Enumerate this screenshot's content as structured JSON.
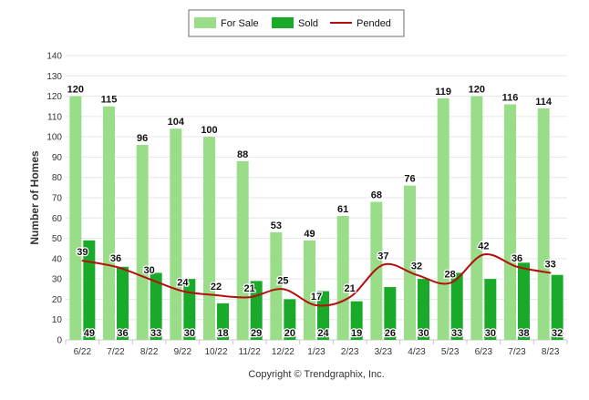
{
  "chart_data": {
    "type": "bar",
    "categories": [
      "6/22",
      "7/22",
      "8/22",
      "9/22",
      "10/22",
      "11/22",
      "12/22",
      "1/23",
      "2/23",
      "3/23",
      "4/23",
      "5/23",
      "6/23",
      "7/23",
      "8/23"
    ],
    "series": [
      {
        "name": "For Sale",
        "type": "bar",
        "color": "#99dd88",
        "values": [
          120,
          115,
          96,
          104,
          100,
          88,
          53,
          49,
          61,
          68,
          76,
          119,
          120,
          116,
          114
        ]
      },
      {
        "name": "Sold",
        "type": "bar",
        "color": "#1aaa2a",
        "values": [
          49,
          36,
          33,
          30,
          18,
          29,
          20,
          24,
          19,
          26,
          30,
          33,
          30,
          38,
          32
        ]
      },
      {
        "name": "Pended",
        "type": "line",
        "color": "#b50e0e",
        "values": [
          39,
          36,
          30,
          24,
          22,
          21,
          25,
          17,
          21,
          37,
          32,
          28,
          42,
          36,
          33
        ]
      }
    ],
    "ylabel": "Number of Homes",
    "xlabel": "",
    "ylim": [
      0,
      140
    ],
    "yticks": [
      0,
      10,
      20,
      30,
      40,
      50,
      60,
      70,
      80,
      90,
      100,
      110,
      120,
      130,
      140
    ],
    "grid": true,
    "legend_placement": "top-center",
    "credit": "Copyright © Trendgraphix, Inc."
  }
}
